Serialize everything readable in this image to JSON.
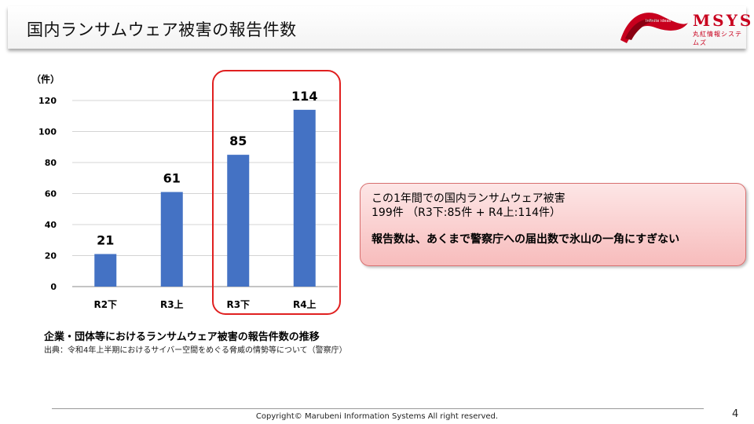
{
  "header": {
    "title": "国内ランサムウェア被害の報告件数",
    "logo_main": "MSYS",
    "logo_sub": "丸紅情報システムズ",
    "logo_tagline": "Infinite ideas"
  },
  "chart_data": {
    "type": "bar",
    "categories": [
      "R2下",
      "R3上",
      "R3下",
      "R4上"
    ],
    "values": [
      21,
      61,
      85,
      114
    ],
    "ylabel": "（件）",
    "ylim": [
      0,
      120
    ],
    "yticks": [
      0,
      20,
      40,
      60,
      80,
      100,
      120
    ],
    "grid": true,
    "bar_color": "#4472c4",
    "highlight": {
      "categories": [
        "R3下",
        "R4上"
      ],
      "color": "#e02020"
    }
  },
  "chart_caption": "企業・団体等におけるランサムウェア被害の報告件数の推移",
  "chart_source": "出典：令和4年上半期におけるサイバー空間をめぐる脅威の情勢等について（警察庁）",
  "callout": {
    "line1": "この1年間での国内ランサムウェア被害",
    "line2": "199件 （R3下:85件 + R4上:114件）",
    "line3": "報告数は、あくまで警察庁への届出数で氷山の一角にすぎない"
  },
  "footer": {
    "copyright": "Copyright© Marubeni Information Systems All right reserved.",
    "page_number": "4"
  },
  "colors": {
    "accent": "#c8001e",
    "callout_border": "#d87070"
  }
}
